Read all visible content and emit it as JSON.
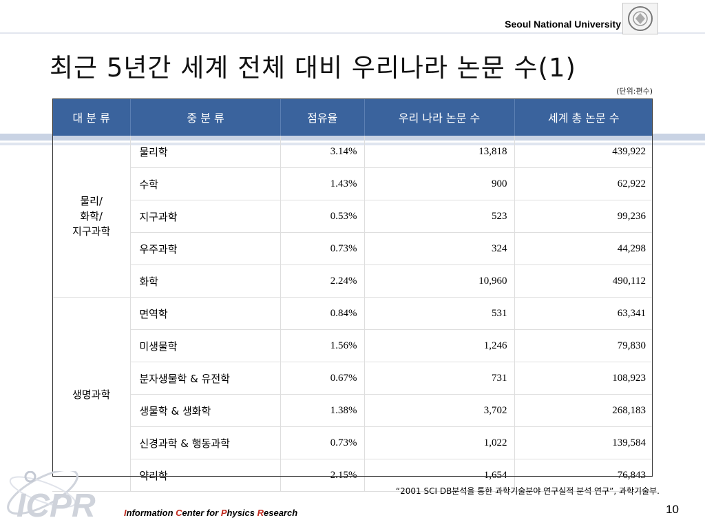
{
  "header": {
    "university": "Seoul National University"
  },
  "slide": {
    "title": "최근 5년간 세계 전체 대비 우리나라 논문 수(1)",
    "unit_note": "(단위:편수)"
  },
  "table": {
    "columns": [
      "대 분 류",
      "중 분 류",
      "점유율",
      "우리 나라 논문 수",
      "세계 총 논문 수"
    ],
    "groups": [
      {
        "major": "물리/\n화학/\n지구과학",
        "rows": [
          {
            "sub": "물리학",
            "share": "3.14%",
            "korea": "13,818",
            "world": "439,922"
          },
          {
            "sub": "수학",
            "share": "1.43%",
            "korea": "900",
            "world": "62,922"
          },
          {
            "sub": "지구과학",
            "share": "0.53%",
            "korea": "523",
            "world": "99,236"
          },
          {
            "sub": "우주과학",
            "share": "0.73%",
            "korea": "324",
            "world": "44,298"
          },
          {
            "sub": "화학",
            "share": "2.24%",
            "korea": "10,960",
            "world": "490,112"
          }
        ]
      },
      {
        "major": "생명과학",
        "rows": [
          {
            "sub": "면역학",
            "share": "0.84%",
            "korea": "531",
            "world": "63,341"
          },
          {
            "sub": "미생물학",
            "share": "1.56%",
            "korea": "1,246",
            "world": "79,830"
          },
          {
            "sub": "분자생물학 & 유전학",
            "share": "0.67%",
            "korea": "731",
            "world": "108,923"
          },
          {
            "sub": "생물학 & 생화학",
            "share": "1.38%",
            "korea": "3,702",
            "world": "268,183"
          },
          {
            "sub": "신경과학 & 행동과학",
            "share": "0.73%",
            "korea": "1,022",
            "world": "139,584"
          },
          {
            "sub": "약리학",
            "share": "2.15%",
            "korea": "1,654",
            "world": "76,843"
          }
        ]
      }
    ]
  },
  "footer": {
    "source": "“2001 SCI DB분석을 통한 과학기술분야 연구실적 분석 연구”, 과학기술부.",
    "logo_text": "ICPR",
    "org_parts": [
      {
        "cap": "I",
        "rest": "nformation "
      },
      {
        "cap": "C",
        "rest": "enter for "
      },
      {
        "cap": "P",
        "rest": "hysics "
      },
      {
        "cap": "R",
        "rest": "esearch"
      }
    ],
    "page_number": "10"
  },
  "colors": {
    "header_fill": "#3a639d",
    "accent_red": "#c0281c"
  }
}
